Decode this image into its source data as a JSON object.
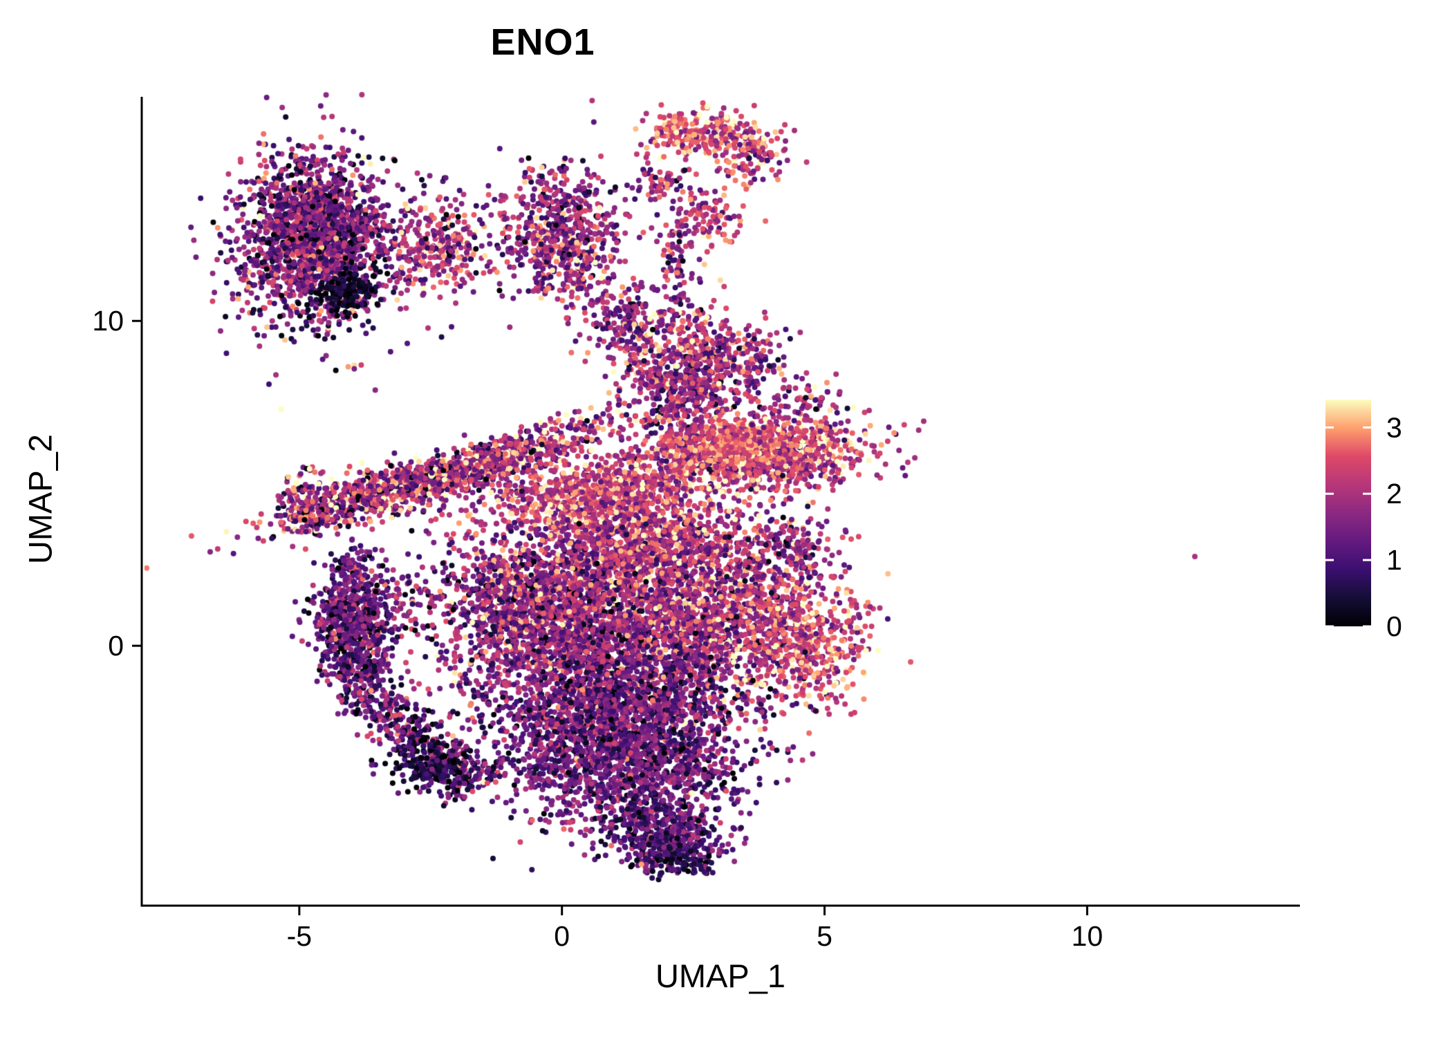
{
  "chart_data": {
    "type": "scatter",
    "title": "ENO1",
    "xlabel": "UMAP_1",
    "ylabel": "UMAP_2",
    "xlim": [
      -8,
      14.05
    ],
    "ylim": [
      -8,
      16.9
    ],
    "x_ticks": [
      -5,
      0,
      5,
      10
    ],
    "y_ticks": [
      0,
      10
    ],
    "grid": false,
    "legend_position": "right",
    "point_radius_px": 4,
    "seed": 7,
    "colorbar": {
      "ticks": [
        0,
        1,
        2,
        3
      ],
      "domain": [
        0,
        3.42
      ],
      "colormap": "magma",
      "stops": [
        [
          0,
          "#000004"
        ],
        [
          0.125,
          "#140e36"
        ],
        [
          0.25,
          "#3b0f70"
        ],
        [
          0.375,
          "#641a80"
        ],
        [
          0.5,
          "#8c2981"
        ],
        [
          0.625,
          "#b73779"
        ],
        [
          0.75,
          "#de4968"
        ],
        [
          0.875,
          "#fe9f6d"
        ],
        [
          1,
          "#fcfdbf"
        ]
      ]
    },
    "clusters": [
      {
        "name": "topleft-main",
        "cx": -4.7,
        "cy": 12.4,
        "sx": 0.75,
        "sy": 1.35,
        "n": 1500,
        "expr_mean": 1.5,
        "expr_sd": 0.8
      },
      {
        "name": "topleft-core",
        "cx": -4.6,
        "cy": 12.8,
        "sx": 0.45,
        "sy": 0.7,
        "n": 500,
        "expr_mean": 1.4,
        "expr_sd": 0.75
      },
      {
        "name": "topleft-dark-patch",
        "cx": -4.1,
        "cy": 10.9,
        "sx": 0.3,
        "sy": 0.35,
        "n": 140,
        "expr_mean": 0.3,
        "expr_sd": 0.25
      },
      {
        "name": "bridge-orange",
        "cx": -2.4,
        "cy": 12.2,
        "sx": 0.45,
        "sy": 0.5,
        "n": 150,
        "expr_mean": 2.4,
        "expr_sd": 0.5
      },
      {
        "name": "bridge-scatter",
        "cx": -2.3,
        "cy": 12.7,
        "sx": 0.65,
        "sy": 1.0,
        "n": 170,
        "expr_mean": 1.6,
        "expr_sd": 0.8
      },
      {
        "name": "top-center",
        "cx": 0.0,
        "cy": 12.6,
        "sx": 0.55,
        "sy": 1.05,
        "n": 650,
        "expr_mean": 1.8,
        "expr_sd": 0.8
      },
      {
        "name": "top-center-trail",
        "cx": 1.2,
        "cy": 10.0,
        "sx": 0.35,
        "sy": 0.65,
        "n": 170,
        "expr_mean": 1.7,
        "expr_sd": 0.7
      },
      {
        "name": "top-small-a",
        "cx": 2.6,
        "cy": 15.8,
        "sx": 0.55,
        "sy": 0.35,
        "angle": 0.1,
        "n": 240,
        "expr_mean": 2.5,
        "expr_sd": 0.6
      },
      {
        "name": "top-small-b",
        "cx": 3.6,
        "cy": 15.2,
        "sx": 0.35,
        "sy": 0.45,
        "n": 130,
        "expr_mean": 2.2,
        "expr_sd": 0.7
      },
      {
        "name": "top-small-c",
        "cx": 1.9,
        "cy": 14.3,
        "sx": 0.3,
        "sy": 0.35,
        "n": 60,
        "expr_mean": 1.8,
        "expr_sd": 0.7
      },
      {
        "name": "top-small-d",
        "cx": 2.7,
        "cy": 13.2,
        "sx": 0.35,
        "sy": 0.45,
        "n": 110,
        "expr_mean": 2.2,
        "expr_sd": 0.6
      },
      {
        "name": "top-connector",
        "cx": 2.2,
        "cy": 11.6,
        "sx": 0.25,
        "sy": 0.85,
        "n": 70,
        "expr_mean": 1.6,
        "expr_sd": 0.7
      },
      {
        "name": "mid-cluster",
        "cx": 2.4,
        "cy": 8.4,
        "sx": 0.6,
        "sy": 1.05,
        "n": 750,
        "expr_mean": 1.9,
        "expr_sd": 0.8
      },
      {
        "name": "mid-right-bump",
        "cx": 3.7,
        "cy": 8.8,
        "sx": 0.3,
        "sy": 0.5,
        "n": 90,
        "expr_mean": 1.7,
        "expr_sd": 0.7
      },
      {
        "name": "mid-connector",
        "cx": 2.5,
        "cy": 6.3,
        "sx": 0.4,
        "sy": 0.5,
        "n": 130,
        "expr_mean": 2.0,
        "expr_sd": 0.7
      },
      {
        "name": "left-band-main",
        "cx": -1.9,
        "cy": 5.4,
        "sx": 1.75,
        "sy": 0.3,
        "angle": 0.48,
        "n": 950,
        "expr_mean": 2.0,
        "expr_sd": 0.85
      },
      {
        "name": "left-band-second",
        "cx": -3.3,
        "cy": 4.9,
        "sx": 0.95,
        "sy": 0.28,
        "angle": 0.38,
        "n": 300,
        "expr_mean": 1.8,
        "expr_sd": 0.85
      },
      {
        "name": "left-band-tip",
        "cx": -4.7,
        "cy": 4.3,
        "sx": 0.4,
        "sy": 0.5,
        "n": 170,
        "expr_mean": 1.8,
        "expr_sd": 0.9
      },
      {
        "name": "right-mid",
        "cx": 3.8,
        "cy": 5.9,
        "sx": 1.05,
        "sy": 0.55,
        "angle": 0.08,
        "n": 1000,
        "expr_mean": 2.3,
        "expr_sd": 0.7
      },
      {
        "name": "right-mid-core",
        "cx": 3.4,
        "cy": 6.2,
        "sx": 0.6,
        "sy": 0.35,
        "n": 300,
        "expr_mean": 2.7,
        "expr_sd": 0.4
      },
      {
        "name": "right-mid-above",
        "cx": 4.5,
        "cy": 7.5,
        "sx": 0.5,
        "sy": 0.4,
        "n": 80,
        "expr_mean": 1.8,
        "expr_sd": 0.7
      },
      {
        "name": "center-top-wedge",
        "cx": 0.5,
        "cy": 4.7,
        "sx": 1.15,
        "sy": 0.6,
        "angle": 0.1,
        "n": 800,
        "expr_mean": 2.3,
        "expr_sd": 0.6
      },
      {
        "name": "center-bright",
        "cx": 1.6,
        "cy": 3.0,
        "sx": 1.05,
        "sy": 0.9,
        "n": 1200,
        "expr_mean": 2.2,
        "expr_sd": 0.7
      },
      {
        "name": "center-left",
        "cx": -0.5,
        "cy": 1.5,
        "sx": 1.05,
        "sy": 1.0,
        "n": 1100,
        "expr_mean": 1.7,
        "expr_sd": 0.8
      },
      {
        "name": "center-core",
        "cx": 0.8,
        "cy": 0.3,
        "sx": 1.35,
        "sy": 1.0,
        "n": 1600,
        "expr_mean": 1.7,
        "expr_sd": 0.8
      },
      {
        "name": "center-right-lobe",
        "cx": 3.2,
        "cy": 0.8,
        "sx": 0.95,
        "sy": 1.25,
        "n": 1000,
        "expr_mean": 2.0,
        "expr_sd": 0.75
      },
      {
        "name": "center-right-edge",
        "cx": 4.8,
        "cy": 0.0,
        "sx": 0.55,
        "sy": 0.85,
        "n": 380,
        "expr_mean": 2.4,
        "expr_sd": 0.6
      },
      {
        "name": "center-right-append",
        "cx": 4.4,
        "cy": 3.1,
        "sx": 0.4,
        "sy": 0.5,
        "n": 140,
        "expr_mean": 1.6,
        "expr_sd": 0.8
      },
      {
        "name": "center-lower",
        "cx": 0.8,
        "cy": -1.8,
        "sx": 1.2,
        "sy": 0.8,
        "n": 1100,
        "expr_mean": 1.4,
        "expr_sd": 0.7
      },
      {
        "name": "left-crescent",
        "type": "curve",
        "p0": [
          -4.1,
          1.5
        ],
        "p1": [
          -4.4,
          -1.6
        ],
        "p2": [
          -1.6,
          -4.4
        ],
        "width": 0.32,
        "n": 800,
        "expr_mean": 1.2,
        "expr_sd": 0.75
      },
      {
        "name": "crescent-top",
        "cx": -3.8,
        "cy": 0.9,
        "sx": 0.45,
        "sy": 0.85,
        "n": 350,
        "expr_mean": 1.3,
        "expr_sd": 0.7
      },
      {
        "name": "crescent-dark-tail",
        "cx": -2.4,
        "cy": -3.7,
        "sx": 0.45,
        "sy": 0.4,
        "n": 170,
        "expr_mean": 0.6,
        "expr_sd": 0.5
      },
      {
        "name": "crescent-upper-dots",
        "cx": -4.0,
        "cy": 2.4,
        "sx": 0.3,
        "sy": 0.4,
        "n": 90,
        "expr_mean": 1.4,
        "expr_sd": 0.7
      },
      {
        "name": "bottom-mass",
        "cx": 1.2,
        "cy": -3.6,
        "sx": 1.1,
        "sy": 1.0,
        "n": 1500,
        "expr_mean": 1.3,
        "expr_sd": 0.65
      },
      {
        "name": "bottom-tip",
        "cx": 2.0,
        "cy": -5.9,
        "sx": 0.55,
        "sy": 0.5,
        "n": 380,
        "expr_mean": 1.1,
        "expr_sd": 0.6
      },
      {
        "name": "bottom-tip-dark",
        "cx": 2.2,
        "cy": -6.6,
        "sx": 0.3,
        "sy": 0.25,
        "n": 90,
        "expr_mean": 0.6,
        "expr_sd": 0.45
      }
    ],
    "outliers": [
      {
        "x": 12.05,
        "y": 2.75,
        "expr": 2.0
      }
    ]
  }
}
